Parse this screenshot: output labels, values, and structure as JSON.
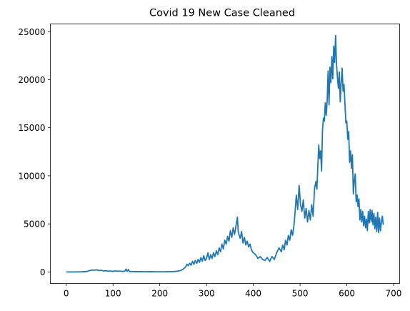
{
  "chart_data": {
    "type": "line",
    "title": "Covid 19 New Case Cleaned",
    "xlabel": "",
    "ylabel": "",
    "xlim": [
      -34,
      713
    ],
    "ylim": [
      -1200,
      25800
    ],
    "xticks": [
      0,
      100,
      200,
      300,
      400,
      500,
      600,
      700
    ],
    "yticks": [
      0,
      5000,
      10000,
      15000,
      20000,
      25000
    ],
    "grid": false,
    "legend": "none",
    "line_color": "#1f77b4",
    "series": [
      {
        "x": [
          0,
          10,
          20,
          30,
          40,
          45,
          50,
          55,
          60,
          65,
          70,
          75,
          80,
          85,
          90,
          95,
          100,
          105,
          110,
          115,
          120,
          125,
          128,
          130,
          133,
          135,
          140,
          150,
          160,
          170,
          180,
          190,
          200,
          210,
          220,
          230,
          235,
          240,
          245,
          250,
          255,
          258,
          261,
          264,
          267,
          270,
          273,
          276,
          279,
          282,
          285,
          288,
          291,
          294,
          297,
          300,
          303,
          306,
          309,
          312,
          315,
          318,
          321,
          324,
          327,
          330,
          333,
          336,
          339,
          342,
          345,
          348,
          351,
          354,
          357,
          360,
          363,
          366,
          368,
          370,
          372,
          375,
          378,
          381,
          384,
          387,
          390,
          393,
          396,
          400,
          405,
          410,
          415,
          420,
          425,
          430,
          435,
          440,
          445,
          450,
          455,
          460,
          463,
          466,
          469,
          472,
          475,
          478,
          481,
          484,
          487,
          489,
          492,
          495,
          498,
          501,
          504,
          507,
          510,
          513,
          516,
          519,
          522,
          525,
          528,
          531,
          534,
          536,
          538,
          540,
          542,
          544,
          546,
          548,
          550,
          552,
          554,
          556,
          558,
          560,
          562,
          564,
          566,
          568,
          570,
          572,
          574,
          576,
          578,
          580,
          582,
          584,
          586,
          588,
          590,
          592,
          594,
          596,
          598,
          600,
          602,
          604,
          606,
          608,
          610,
          612,
          614,
          616,
          618,
          620,
          622,
          624,
          626,
          628,
          630,
          632,
          634,
          636,
          638,
          640,
          642,
          644,
          646,
          648,
          650,
          652,
          654,
          656,
          658,
          660,
          662,
          664,
          666,
          668,
          670,
          672,
          674,
          676,
          678
        ],
        "y": [
          0,
          0,
          0,
          10,
          30,
          60,
          150,
          200,
          180,
          220,
          150,
          170,
          100,
          120,
          80,
          90,
          60,
          110,
          70,
          90,
          50,
          80,
          300,
          60,
          250,
          40,
          40,
          30,
          30,
          20,
          30,
          20,
          20,
          20,
          30,
          40,
          60,
          100,
          150,
          300,
          500,
          800,
          650,
          900,
          700,
          1100,
          800,
          1200,
          900,
          1300,
          1000,
          1500,
          1100,
          1700,
          1200,
          1400,
          2000,
          1300,
          1800,
          1400,
          2000,
          1600,
          2200,
          1800,
          2500,
          2100,
          2900,
          2400,
          3300,
          2900,
          3700,
          3200,
          4300,
          3600,
          4600,
          3900,
          4800,
          5700,
          4100,
          3800,
          3500,
          4200,
          3000,
          3600,
          2800,
          3200,
          2600,
          2900,
          2300,
          2000,
          1800,
          1400,
          1600,
          1300,
          1200,
          1500,
          1100,
          1600,
          1300,
          2000,
          2500,
          2100,
          2800,
          2300,
          3300,
          2800,
          3800,
          3300,
          4400,
          3800,
          4900,
          6000,
          8000,
          6500,
          9000,
          7000,
          6300,
          7500,
          5600,
          6600,
          5200,
          6400,
          5400,
          7000,
          5800,
          8700,
          9400,
          8600,
          11000,
          13200,
          11800,
          12600,
          10500,
          14800,
          16000,
          15700,
          17600,
          16300,
          17800,
          20900,
          17400,
          21300,
          19700,
          22400,
          20100,
          23500,
          21800,
          24600,
          21600,
          20200,
          19100,
          20800,
          17700,
          19700,
          21200,
          18800,
          19500,
          17500,
          15500,
          15700,
          13800,
          14600,
          11400,
          12600,
          10800,
          12200,
          8100,
          9500,
          10200,
          7300,
          8000,
          6800,
          7600,
          5400,
          6500,
          5200,
          6300,
          4800,
          5800,
          4600,
          5500,
          4300,
          6300,
          5100,
          6500,
          5200,
          6400,
          4900,
          6100,
          4500,
          5700,
          4200,
          6200,
          4100,
          5600,
          4300,
          5200,
          5800,
          4900
        ]
      }
    ]
  }
}
